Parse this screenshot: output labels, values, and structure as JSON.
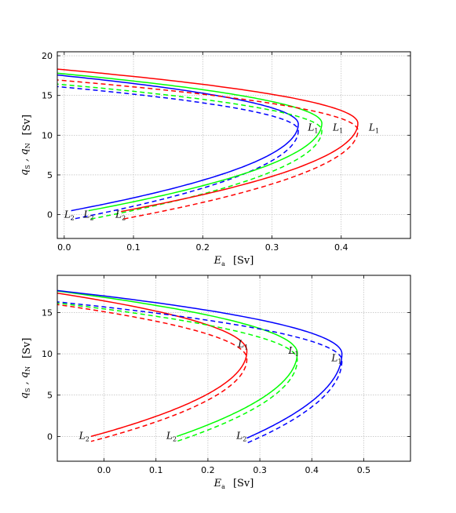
{
  "chart_data": [
    {
      "type": "line",
      "xlabel": "E_a  [Sv]",
      "ylabel": "q_S , q_N  [Sv]",
      "xlim": [
        -0.01,
        0.5
      ],
      "ylim": [
        -3,
        20.5
      ],
      "xticks": [
        "0.0",
        "0.1",
        "0.2",
        "0.3",
        "0.4"
      ],
      "yticks": [
        "0",
        "5",
        "10",
        "15",
        "20"
      ],
      "grid": true,
      "colors": {
        "blue": "#0000ff",
        "green": "#00ff00",
        "red": "#ff0000"
      },
      "series": [
        {
          "color": "blue",
          "style": "solid",
          "turn_x": 0.338,
          "turn_y": 11.4,
          "top_y": 18.0,
          "bottom_x": 0.01,
          "bottom_y": 0.5
        },
        {
          "color": "blue",
          "style": "dashed",
          "turn_x": 0.338,
          "turn_y": 10.6,
          "top_y": 16.5,
          "bottom_x": 0.01,
          "bottom_y": -0.6
        },
        {
          "color": "green",
          "style": "solid",
          "turn_x": 0.372,
          "turn_y": 11.5,
          "top_y": 18.2,
          "bottom_x": 0.035,
          "bottom_y": 0.5
        },
        {
          "color": "green",
          "style": "dashed",
          "turn_x": 0.372,
          "turn_y": 10.6,
          "top_y": 16.8,
          "bottom_x": 0.035,
          "bottom_y": -0.6
        },
        {
          "color": "red",
          "style": "solid",
          "turn_x": 0.424,
          "turn_y": 11.5,
          "top_y": 18.7,
          "bottom_x": 0.082,
          "bottom_y": 0.4
        },
        {
          "color": "red",
          "style": "dashed",
          "turn_x": 0.424,
          "turn_y": 10.6,
          "top_y": 17.3,
          "bottom_x": 0.082,
          "bottom_y": -0.6
        }
      ],
      "annotations": [
        {
          "text": "L",
          "sub": "1",
          "x": 0.352,
          "y": 10.6
        },
        {
          "text": "L",
          "sub": "1",
          "x": 0.388,
          "y": 10.6
        },
        {
          "text": "L",
          "sub": "1",
          "x": 0.44,
          "y": 10.6
        },
        {
          "text": "L",
          "sub": "2",
          "x": 0.0,
          "y": -0.4
        },
        {
          "text": "L",
          "sub": "2",
          "x": 0.028,
          "y": -0.4
        },
        {
          "text": "L",
          "sub": "2",
          "x": 0.074,
          "y": -0.4
        }
      ]
    },
    {
      "type": "line",
      "xlabel": "E_a  [Sv]",
      "ylabel": "q_S , q_N  [Sv]",
      "xlim": [
        -0.09,
        0.59
      ],
      "ylim": [
        -3,
        19.5
      ],
      "xticks": [
        "0.0",
        "0.1",
        "0.2",
        "0.3",
        "0.4",
        "0.5"
      ],
      "yticks": [
        "0",
        "5",
        "10",
        "15"
      ],
      "grid": true,
      "colors": {
        "blue": "#0000ff",
        "green": "#00ff00",
        "red": "#ff0000"
      },
      "series": [
        {
          "color": "red",
          "style": "solid",
          "turn_x": 0.275,
          "turn_y": 10.3,
          "top_y": 17.8,
          "bottom_x": -0.025,
          "bottom_y": 0.0
        },
        {
          "color": "red",
          "style": "dashed",
          "turn_x": 0.275,
          "turn_y": 9.4,
          "top_y": 16.4,
          "bottom_x": -0.025,
          "bottom_y": -0.6
        },
        {
          "color": "green",
          "style": "solid",
          "turn_x": 0.372,
          "turn_y": 10.1,
          "top_y": 18.0,
          "bottom_x": 0.14,
          "bottom_y": 0.0
        },
        {
          "color": "green",
          "style": "dashed",
          "turn_x": 0.372,
          "turn_y": 9.3,
          "top_y": 16.5,
          "bottom_x": 0.14,
          "bottom_y": -0.6
        },
        {
          "color": "blue",
          "style": "solid",
          "turn_x": 0.458,
          "turn_y": 10.0,
          "top_y": 18.0,
          "bottom_x": 0.275,
          "bottom_y": -0.2
        },
        {
          "color": "blue",
          "style": "dashed",
          "turn_x": 0.458,
          "turn_y": 9.2,
          "top_y": 16.6,
          "bottom_x": 0.275,
          "bottom_y": -0.8
        }
      ],
      "annotations": [
        {
          "text": "L",
          "sub": "1",
          "x": 0.258,
          "y": 10.8
        },
        {
          "text": "L",
          "sub": "1",
          "x": 0.355,
          "y": 10.0
        },
        {
          "text": "L",
          "sub": "1",
          "x": 0.438,
          "y": 9.1
        },
        {
          "text": "L",
          "sub": "2",
          "x": -0.048,
          "y": -0.3
        },
        {
          "text": "L",
          "sub": "2",
          "x": 0.12,
          "y": -0.3
        },
        {
          "text": "L",
          "sub": "2",
          "x": 0.255,
          "y": -0.3
        }
      ]
    }
  ]
}
